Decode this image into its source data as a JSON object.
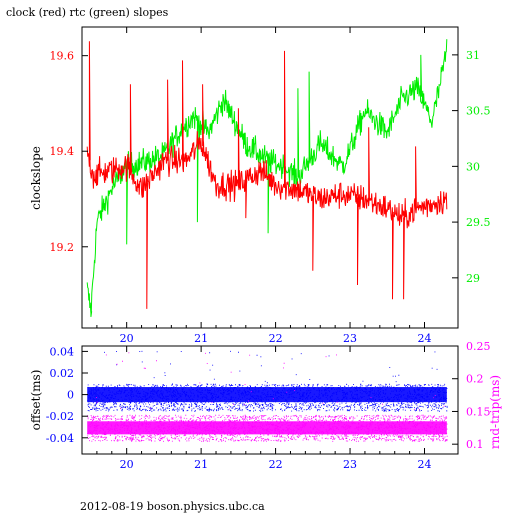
{
  "title": "clock (red) rtc (green) slopes",
  "footer": "2012-08-19  boson.physics.ubc.ca",
  "colors": {
    "red": "#ff0000",
    "green": "#00ee00",
    "blue": "#0000ff",
    "magenta": "#ff00ff",
    "axis": "#000000"
  },
  "chart_data": [
    {
      "type": "line",
      "x": {
        "ticks": [
          20,
          21,
          22,
          23,
          24
        ],
        "range": [
          19.4,
          24.45
        ]
      },
      "ylabel": "clockslope",
      "ylim": [
        19.03,
        19.66
      ],
      "yticks": [
        19.2,
        19.4,
        19.6
      ],
      "y2lim": [
        28.55,
        31.25
      ],
      "y2ticks": [
        29,
        29.5,
        30,
        30.5,
        31
      ],
      "series": [
        {
          "axis": "left",
          "color": "red",
          "keypoints": [
            [
              19.47,
              19.4
            ],
            [
              19.55,
              19.35
            ],
            [
              19.8,
              19.36
            ],
            [
              20.0,
              19.37
            ],
            [
              20.2,
              19.32
            ],
            [
              20.5,
              19.38
            ],
            [
              20.8,
              19.38
            ],
            [
              21.0,
              19.42
            ],
            [
              21.2,
              19.33
            ],
            [
              21.5,
              19.33
            ],
            [
              21.8,
              19.36
            ],
            [
              22.0,
              19.33
            ],
            [
              22.3,
              19.32
            ],
            [
              22.6,
              19.3
            ],
            [
              22.9,
              19.31
            ],
            [
              23.2,
              19.3
            ],
            [
              23.5,
              19.28
            ],
            [
              23.7,
              19.26
            ],
            [
              23.9,
              19.28
            ],
            [
              24.1,
              19.29
            ],
            [
              24.3,
              19.3
            ]
          ],
          "spikes": [
            [
              19.5,
              19.63
            ],
            [
              20.05,
              19.54
            ],
            [
              20.27,
              19.07
            ],
            [
              20.55,
              19.55
            ],
            [
              20.75,
              19.59
            ],
            [
              21.02,
              19.54
            ],
            [
              21.5,
              19.49
            ],
            [
              21.6,
              19.26
            ],
            [
              22.12,
              19.61
            ],
            [
              22.5,
              19.15
            ],
            [
              23.1,
              19.12
            ],
            [
              23.25,
              19.45
            ],
            [
              23.57,
              19.09
            ],
            [
              23.72,
              19.09
            ],
            [
              23.88,
              19.41
            ]
          ],
          "noise": 0.03
        },
        {
          "axis": "right",
          "color": "green",
          "keypoints": [
            [
              19.47,
              28.9
            ],
            [
              19.52,
              28.7
            ],
            [
              19.6,
              29.5
            ],
            [
              19.8,
              29.8
            ],
            [
              20.0,
              30.0
            ],
            [
              20.3,
              30.05
            ],
            [
              20.5,
              30.1
            ],
            [
              20.7,
              30.3
            ],
            [
              20.9,
              30.45
            ],
            [
              21.1,
              30.3
            ],
            [
              21.3,
              30.6
            ],
            [
              21.6,
              30.2
            ],
            [
              21.9,
              30.05
            ],
            [
              22.1,
              30.0
            ],
            [
              22.3,
              29.9
            ],
            [
              22.6,
              30.2
            ],
            [
              22.9,
              30.0
            ],
            [
              23.0,
              30.15
            ],
            [
              23.2,
              30.5
            ],
            [
              23.5,
              30.3
            ],
            [
              23.7,
              30.6
            ],
            [
              23.9,
              30.7
            ],
            [
              24.1,
              30.4
            ],
            [
              24.2,
              30.7
            ],
            [
              24.3,
              31.05
            ]
          ],
          "spikes": [
            [
              19.52,
              28.65
            ],
            [
              20.0,
              29.3
            ],
            [
              20.95,
              29.5
            ],
            [
              21.9,
              29.4
            ],
            [
              22.45,
              30.85
            ],
            [
              22.3,
              30.7
            ],
            [
              23.95,
              31.0
            ]
          ],
          "noise": 0.12
        }
      ]
    },
    {
      "type": "scatter",
      "x": {
        "ticks": [
          20,
          21,
          22,
          23,
          24
        ],
        "range": [
          19.4,
          24.45
        ]
      },
      "ylabel": "offset(ms)",
      "ylim": [
        -0.055,
        0.045
      ],
      "yticks": [
        -0.04,
        -0.02,
        0,
        0.02,
        0.04
      ],
      "y2label": "rnd-trip(ms)",
      "y2lim": [
        0.085,
        0.25
      ],
      "y2ticks": [
        0.1,
        0.15,
        0.2,
        0.25
      ],
      "xrange_data": [
        19.47,
        24.3
      ],
      "series": [
        {
          "axis": "left",
          "color": "blue",
          "center": 0.0,
          "core_half_width": 0.007,
          "sparse": [
            -0.015,
            0.01
          ]
        },
        {
          "axis": "right",
          "color": "magenta",
          "center": 0.125,
          "core_half_width": 0.01,
          "sparse": [
            0.105,
            0.145
          ]
        }
      ]
    }
  ]
}
